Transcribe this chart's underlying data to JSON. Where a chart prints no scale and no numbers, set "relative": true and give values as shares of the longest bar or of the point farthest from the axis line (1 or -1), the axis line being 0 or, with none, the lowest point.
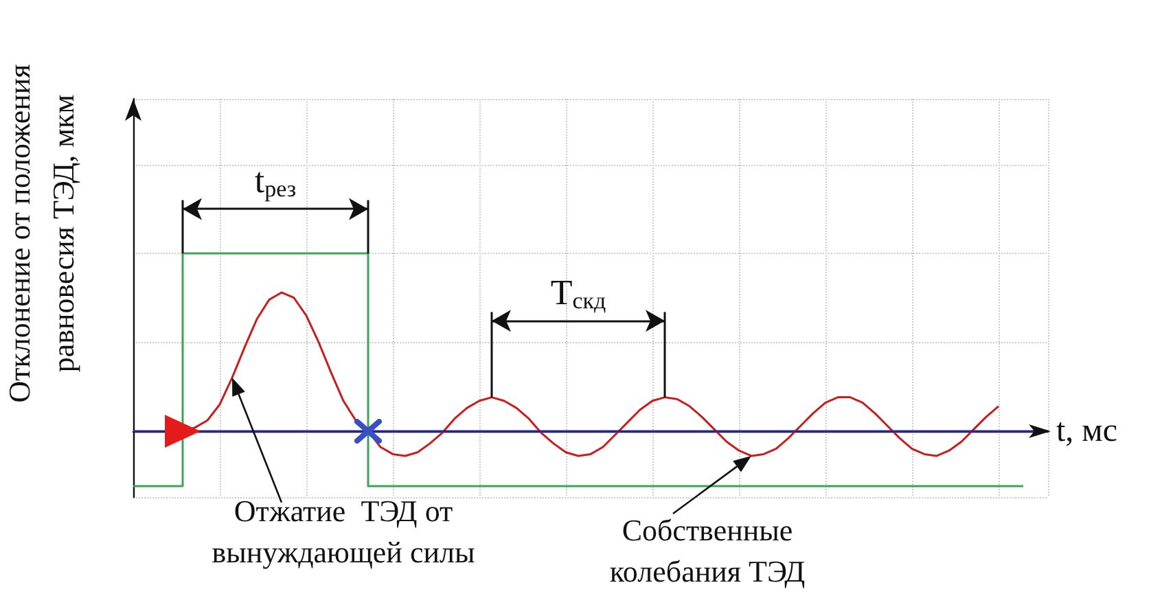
{
  "chart_data": {
    "type": "line",
    "relative": true,
    "grid": true,
    "xlabel": "t, мс",
    "ylabel": "Отклонение от положения\nравновесия ТЭД, мкм",
    "categories": [
      null,
      null,
      null,
      null,
      null,
      null,
      null,
      null,
      null,
      null,
      null,
      null,
      null,
      null,
      null,
      null,
      null,
      null,
      null,
      null,
      null,
      null,
      null,
      null,
      null,
      null,
      null,
      null,
      null,
      null,
      null,
      null,
      null,
      null,
      null,
      null,
      null,
      null,
      null,
      null,
      null,
      null,
      null,
      null,
      null,
      null,
      null,
      null,
      null,
      null,
      null,
      null,
      null,
      null,
      null,
      null,
      null,
      null,
      null,
      null,
      null,
      null,
      null,
      null,
      null,
      null,
      null,
      null,
      null,
      null,
      null,
      null,
      null,
      null,
      null
    ],
    "series": [
      {
        "type": "step",
        "color": "#3aa655",
        "values": [
          -0.31,
          -0.31,
          -0.31,
          -0.31,
          1,
          1,
          1,
          1,
          1,
          1,
          1,
          1,
          1,
          1,
          1,
          1,
          1,
          1,
          1,
          -0.31,
          -0.31,
          -0.31,
          -0.31,
          -0.31,
          -0.31,
          -0.31,
          -0.31,
          -0.31,
          -0.31,
          -0.31,
          -0.31,
          -0.31,
          -0.31,
          -0.31,
          -0.31,
          -0.31,
          -0.31,
          -0.31,
          -0.31,
          -0.31,
          -0.31,
          -0.31,
          -0.31,
          -0.31,
          -0.31,
          -0.31,
          -0.31,
          -0.31,
          -0.31,
          -0.31,
          -0.31,
          -0.31,
          -0.31,
          -0.31,
          -0.31,
          -0.31,
          -0.31,
          -0.31,
          -0.31,
          -0.31,
          -0.31,
          -0.31,
          -0.31,
          -0.31,
          -0.31,
          -0.31,
          -0.31,
          -0.31,
          -0.31,
          -0.31,
          -0.31,
          -0.31,
          -0.31,
          null,
          null
        ]
      },
      {
        "color": "#c81e1e",
        "values": [
          null,
          null,
          null,
          null,
          0,
          0.02,
          0.06,
          0.15,
          0.3,
          0.47,
          0.63,
          0.74,
          0.78,
          0.75,
          0.65,
          0.5,
          0.33,
          0.17,
          0.06,
          0,
          -0.09,
          -0.13,
          -0.14,
          -0.12,
          -0.07,
          -0.01,
          0.07,
          0.13,
          0.17,
          0.19,
          0.17,
          0.13,
          0.07,
          -0.01,
          -0.07,
          -0.12,
          -0.14,
          -0.13,
          -0.09,
          -0.02,
          0.05,
          0.12,
          0.17,
          0.19,
          0.18,
          0.14,
          0.08,
          0.01,
          -0.06,
          -0.11,
          -0.14,
          -0.13,
          -0.1,
          -0.04,
          0.03,
          0.1,
          0.16,
          0.19,
          0.19,
          0.16,
          0.1,
          0.03,
          -0.04,
          -0.1,
          -0.13,
          -0.14,
          -0.11,
          -0.06,
          0.01,
          0.08,
          0.14,
          null,
          null,
          null,
          null
        ]
      }
    ],
    "ref_lines": [
      {
        "axis": "y",
        "value": 0,
        "color": "#2a2a8a"
      }
    ],
    "annotations": [
      "t$_{рез}$",
      "T$_{скд}$",
      "Отжатие  ТЭД от\nвынуждающей силы",
      "Собственные\nколебания ТЭД"
    ]
  }
}
